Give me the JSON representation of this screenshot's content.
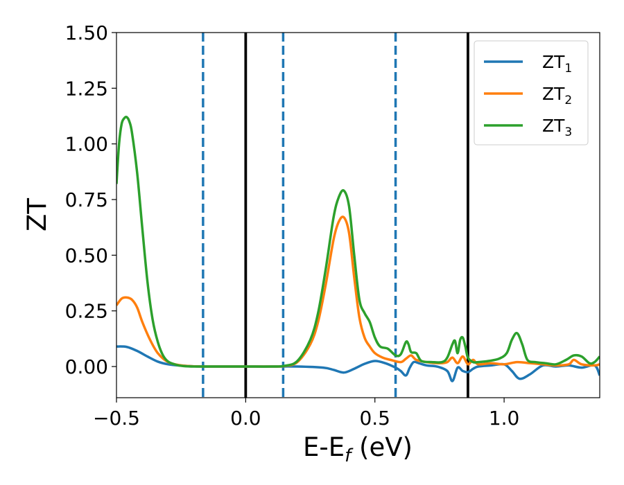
{
  "chart_data": {
    "type": "line",
    "title": "",
    "xlabel": "E-E",
    "xlabel_sub": "f",
    "xlabel_unit": " (eV)",
    "ylabel": "ZT",
    "xlim": [
      -0.5,
      1.37
    ],
    "ylim": [
      -0.14,
      1.5
    ],
    "xticks": [
      -0.5,
      0.0,
      0.5,
      1.0
    ],
    "xtick_labels": [
      "−0.5",
      "0.0",
      "0.5",
      "1.0"
    ],
    "yticks": [
      0.0,
      0.25,
      0.5,
      0.75,
      1.0,
      1.25,
      1.5
    ],
    "ytick_labels": [
      "0.00",
      "0.25",
      "0.50",
      "0.75",
      "1.00",
      "1.25",
      "1.50"
    ],
    "legend_position": "top-right",
    "vlines": [
      {
        "x": -0.165,
        "style": "dashed",
        "color": "#1f77b4"
      },
      {
        "x": 0.0,
        "style": "solid",
        "color": "#000000"
      },
      {
        "x": 0.145,
        "style": "dashed",
        "color": "#1f77b4"
      },
      {
        "x": 0.58,
        "style": "dashed",
        "color": "#1f77b4"
      },
      {
        "x": 0.86,
        "style": "solid",
        "color": "#000000"
      }
    ],
    "series": [
      {
        "name": "ZT",
        "sub": "1",
        "color": "#1f77b4",
        "x": [
          -0.5,
          -0.46,
          -0.42,
          -0.38,
          -0.34,
          -0.3,
          -0.25,
          -0.2,
          -0.1,
          0.0,
          0.1,
          0.2,
          0.3,
          0.34,
          0.38,
          0.42,
          0.46,
          0.5,
          0.54,
          0.58,
          0.6,
          0.62,
          0.635,
          0.65,
          0.67,
          0.7,
          0.74,
          0.78,
          0.8,
          0.82,
          0.84,
          0.86,
          0.88,
          0.9,
          0.95,
          1.0,
          1.03,
          1.06,
          1.1,
          1.15,
          1.2,
          1.25,
          1.3,
          1.35,
          1.37
        ],
        "y": [
          0.09,
          0.088,
          0.07,
          0.045,
          0.022,
          0.01,
          0.004,
          0.001,
          0.0,
          0.0,
          0.0,
          0.0,
          -0.005,
          -0.015,
          -0.027,
          -0.01,
          0.012,
          0.025,
          0.015,
          -0.005,
          -0.02,
          -0.04,
          -0.005,
          0.02,
          0.015,
          0.005,
          0.0,
          -0.02,
          -0.065,
          -0.005,
          -0.02,
          -0.025,
          -0.01,
          0.0,
          0.005,
          0.01,
          -0.02,
          -0.055,
          -0.035,
          0.005,
          0.0,
          0.005,
          -0.005,
          0.005,
          -0.04
        ]
      },
      {
        "name": "ZT",
        "sub": "2",
        "color": "#ff7f0e",
        "x": [
          -0.5,
          -0.48,
          -0.46,
          -0.44,
          -0.42,
          -0.4,
          -0.37,
          -0.34,
          -0.3,
          -0.25,
          -0.2,
          -0.1,
          0.0,
          0.1,
          0.15,
          0.2,
          0.25,
          0.28,
          0.31,
          0.34,
          0.36,
          0.38,
          0.4,
          0.42,
          0.44,
          0.46,
          0.48,
          0.5,
          0.53,
          0.56,
          0.6,
          0.62,
          0.64,
          0.66,
          0.7,
          0.75,
          0.78,
          0.8,
          0.82,
          0.84,
          0.86,
          0.88,
          0.9,
          0.95,
          1.0,
          1.05,
          1.1,
          1.15,
          1.2,
          1.25,
          1.27,
          1.3,
          1.35,
          1.37
        ],
        "y": [
          0.275,
          0.305,
          0.31,
          0.3,
          0.265,
          0.2,
          0.12,
          0.06,
          0.02,
          0.005,
          0.001,
          0.0,
          0.0,
          0.0,
          0.002,
          0.02,
          0.1,
          0.2,
          0.37,
          0.57,
          0.65,
          0.67,
          0.6,
          0.4,
          0.22,
          0.13,
          0.09,
          0.06,
          0.04,
          0.03,
          0.02,
          0.035,
          0.05,
          0.03,
          0.02,
          0.015,
          0.02,
          0.04,
          0.015,
          0.045,
          0.01,
          0.03,
          0.01,
          0.015,
          0.01,
          0.02,
          0.015,
          0.01,
          0.005,
          0.01,
          0.03,
          0.01,
          0.005,
          0.01
        ]
      },
      {
        "name": "ZT",
        "sub": "3",
        "color": "#2ca02c",
        "x": [
          -0.5,
          -0.49,
          -0.48,
          -0.47,
          -0.46,
          -0.45,
          -0.44,
          -0.42,
          -0.4,
          -0.38,
          -0.36,
          -0.34,
          -0.32,
          -0.3,
          -0.27,
          -0.24,
          -0.2,
          -0.1,
          0.0,
          0.1,
          0.15,
          0.2,
          0.25,
          0.28,
          0.31,
          0.34,
          0.36,
          0.38,
          0.4,
          0.42,
          0.44,
          0.46,
          0.48,
          0.5,
          0.52,
          0.55,
          0.58,
          0.6,
          0.62,
          0.63,
          0.64,
          0.66,
          0.68,
          0.72,
          0.76,
          0.78,
          0.8,
          0.81,
          0.82,
          0.83,
          0.84,
          0.85,
          0.86,
          0.88,
          0.9,
          0.94,
          0.98,
          1.01,
          1.03,
          1.05,
          1.07,
          1.09,
          1.12,
          1.16,
          1.2,
          1.24,
          1.27,
          1.3,
          1.33,
          1.35,
          1.37
        ],
        "y": [
          0.82,
          1.0,
          1.09,
          1.115,
          1.12,
          1.1,
          1.05,
          0.87,
          0.62,
          0.38,
          0.21,
          0.11,
          0.05,
          0.022,
          0.008,
          0.002,
          0.0,
          0.0,
          0.0,
          0.0,
          0.003,
          0.025,
          0.12,
          0.24,
          0.44,
          0.67,
          0.76,
          0.79,
          0.72,
          0.5,
          0.3,
          0.24,
          0.2,
          0.13,
          0.09,
          0.08,
          0.05,
          0.055,
          0.11,
          0.1,
          0.065,
          0.06,
          0.025,
          0.02,
          0.02,
          0.04,
          0.1,
          0.115,
          0.06,
          0.12,
          0.13,
          0.09,
          0.04,
          0.02,
          0.02,
          0.025,
          0.035,
          0.06,
          0.12,
          0.15,
          0.1,
          0.03,
          0.02,
          0.015,
          0.01,
          0.03,
          0.05,
          0.045,
          0.015,
          0.02,
          0.045
        ]
      }
    ]
  }
}
